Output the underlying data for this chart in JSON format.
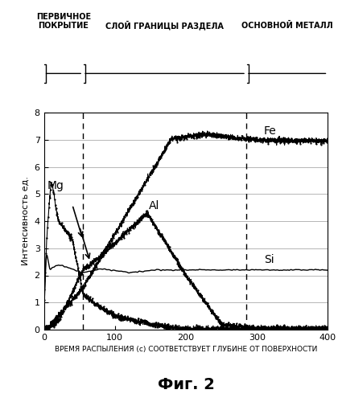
{
  "title": "Фиг. 2",
  "xlabel": "ВРЕМЯ РАСПЫЛЕНИЯ (с) СООТВЕТСТВУЕТ ГЛУБИНЕ ОТ ПОВЕРХНОСТИ",
  "ylabel": "Интенсивность ед.",
  "xlim": [
    0,
    400
  ],
  "ylim": [
    0,
    8
  ],
  "xticks": [
    0,
    100,
    200,
    300,
    400
  ],
  "yticks": [
    0,
    1,
    2,
    3,
    4,
    5,
    6,
    7,
    8
  ],
  "vline1": 55,
  "vline2": 285,
  "region_labels": [
    "ПЕРВИЧНОЕ\nПОКРЫТИЕ",
    "СЛОЙ ГРАНИЦЫ РАЗДЕЛА",
    "ОСНОВНОЙ МЕТАЛЛ"
  ],
  "element_labels": [
    "Fe",
    "Mg",
    "Al",
    "Si"
  ],
  "background_color": "#ffffff",
  "line_color": "#000000"
}
